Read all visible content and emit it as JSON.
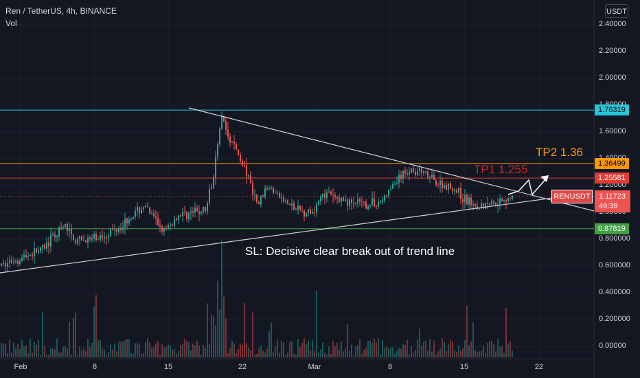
{
  "header": {
    "title": "Ren / TetherUS, 4h, BINANCE",
    "volume_label": "Vol"
  },
  "currency": "USDT",
  "y_axis": {
    "ticks": [
      "2.40000",
      "2.20000",
      "2.00000",
      "1.80000",
      "1.60000",
      "1.40000",
      "1.20000",
      "1.00000",
      "0.800000",
      "0.600000",
      "0.400000",
      "0.200000",
      "0.00000"
    ]
  },
  "x_axis": {
    "ticks": [
      "Feb",
      "8",
      "15",
      "22",
      "Mar",
      "8",
      "15",
      "22"
    ]
  },
  "price_lines": [
    {
      "label": "1.76319",
      "color": "#26c6da",
      "text_color": "#000000"
    },
    {
      "label": "1.36499",
      "color": "#ff9800",
      "text_color": "#000000"
    },
    {
      "label": "1.25581",
      "color": "#e53935",
      "text_color": "#ffffff"
    },
    {
      "label": "0.87819",
      "color": "#43a047",
      "text_color": "#ffffff"
    }
  ],
  "current": {
    "symbol": "RENUSDT",
    "price": "1.11723",
    "countdown": "49:39"
  },
  "annotations": {
    "tp2": "TP2 1.36",
    "tp1": "TP1 1.255",
    "sl": "SL: Decisive clear break out of trend line"
  },
  "colors": {
    "up": "#26a69a",
    "down": "#ef5350",
    "background": "#131722"
  }
}
